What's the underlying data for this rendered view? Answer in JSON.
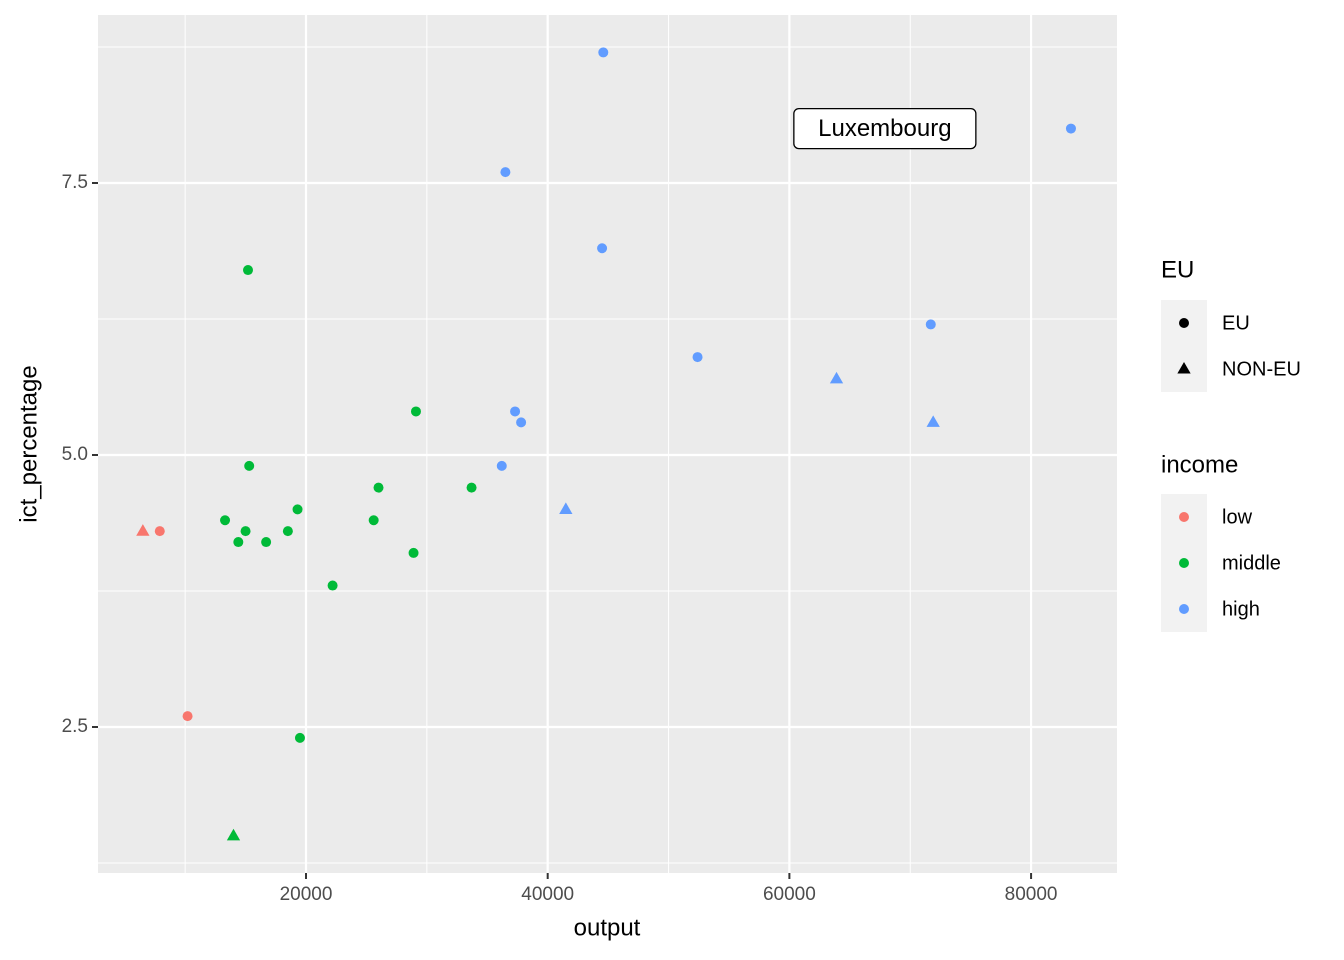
{
  "chart_data": {
    "type": "scatter",
    "x_label": "output",
    "y_label": "ict_percentage",
    "xlim": [
      2788,
      87110
    ],
    "ylim": [
      1.158,
      9.044
    ],
    "xticks": [
      20000,
      40000,
      60000,
      80000
    ],
    "yticks": [
      2.5,
      5.0,
      7.5
    ],
    "x_minor_breaks": [
      10000,
      30000,
      50000,
      70000
    ],
    "y_minor_breaks": [
      1.25,
      3.75,
      6.25,
      8.75
    ],
    "grid": true,
    "color_legend_title": "income",
    "shape_legend": {
      "title": "EU",
      "labels": [
        "EU",
        "NON-EU"
      ],
      "shapes": [
        "circle",
        "triangle"
      ]
    },
    "series": [
      {
        "name": "low",
        "color": "#f8766d",
        "x": [
          7900,
          10200,
          6500
        ],
        "values": [
          4.3,
          2.6,
          4.3
        ],
        "group": [
          "EU",
          "EU",
          "NON-EU"
        ]
      },
      {
        "name": "middle",
        "color": "#00ba38",
        "x": [
          15200,
          29100,
          15300,
          26000,
          33700,
          19300,
          13300,
          25600,
          15000,
          18500,
          14400,
          16700,
          28900,
          22200,
          19500,
          14000
        ],
        "values": [
          6.7,
          5.4,
          4.9,
          4.7,
          4.7,
          4.5,
          4.4,
          4.4,
          4.3,
          4.3,
          4.2,
          4.2,
          4.1,
          3.8,
          2.4,
          1.5
        ],
        "group": [
          "EU",
          "EU",
          "EU",
          "EU",
          "EU",
          "EU",
          "EU",
          "EU",
          "EU",
          "EU",
          "EU",
          "EU",
          "EU",
          "EU",
          "EU",
          "NON-EU"
        ]
      },
      {
        "name": "high",
        "color": "#619cff",
        "x": [
          44600,
          83300,
          36500,
          44500,
          71700,
          52400,
          37300,
          37800,
          36200,
          63900,
          71900,
          41500
        ],
        "values": [
          8.7,
          8.0,
          7.6,
          6.9,
          6.2,
          5.9,
          5.4,
          5.3,
          4.9,
          5.7,
          5.3,
          4.5
        ],
        "group": [
          "EU",
          "EU",
          "EU",
          "EU",
          "EU",
          "EU",
          "EU",
          "EU",
          "EU",
          "NON-EU",
          "NON-EU",
          "NON-EU"
        ]
      }
    ],
    "annotation": {
      "text": "Luxembourg",
      "x": 67900,
      "y": 8.0
    }
  }
}
